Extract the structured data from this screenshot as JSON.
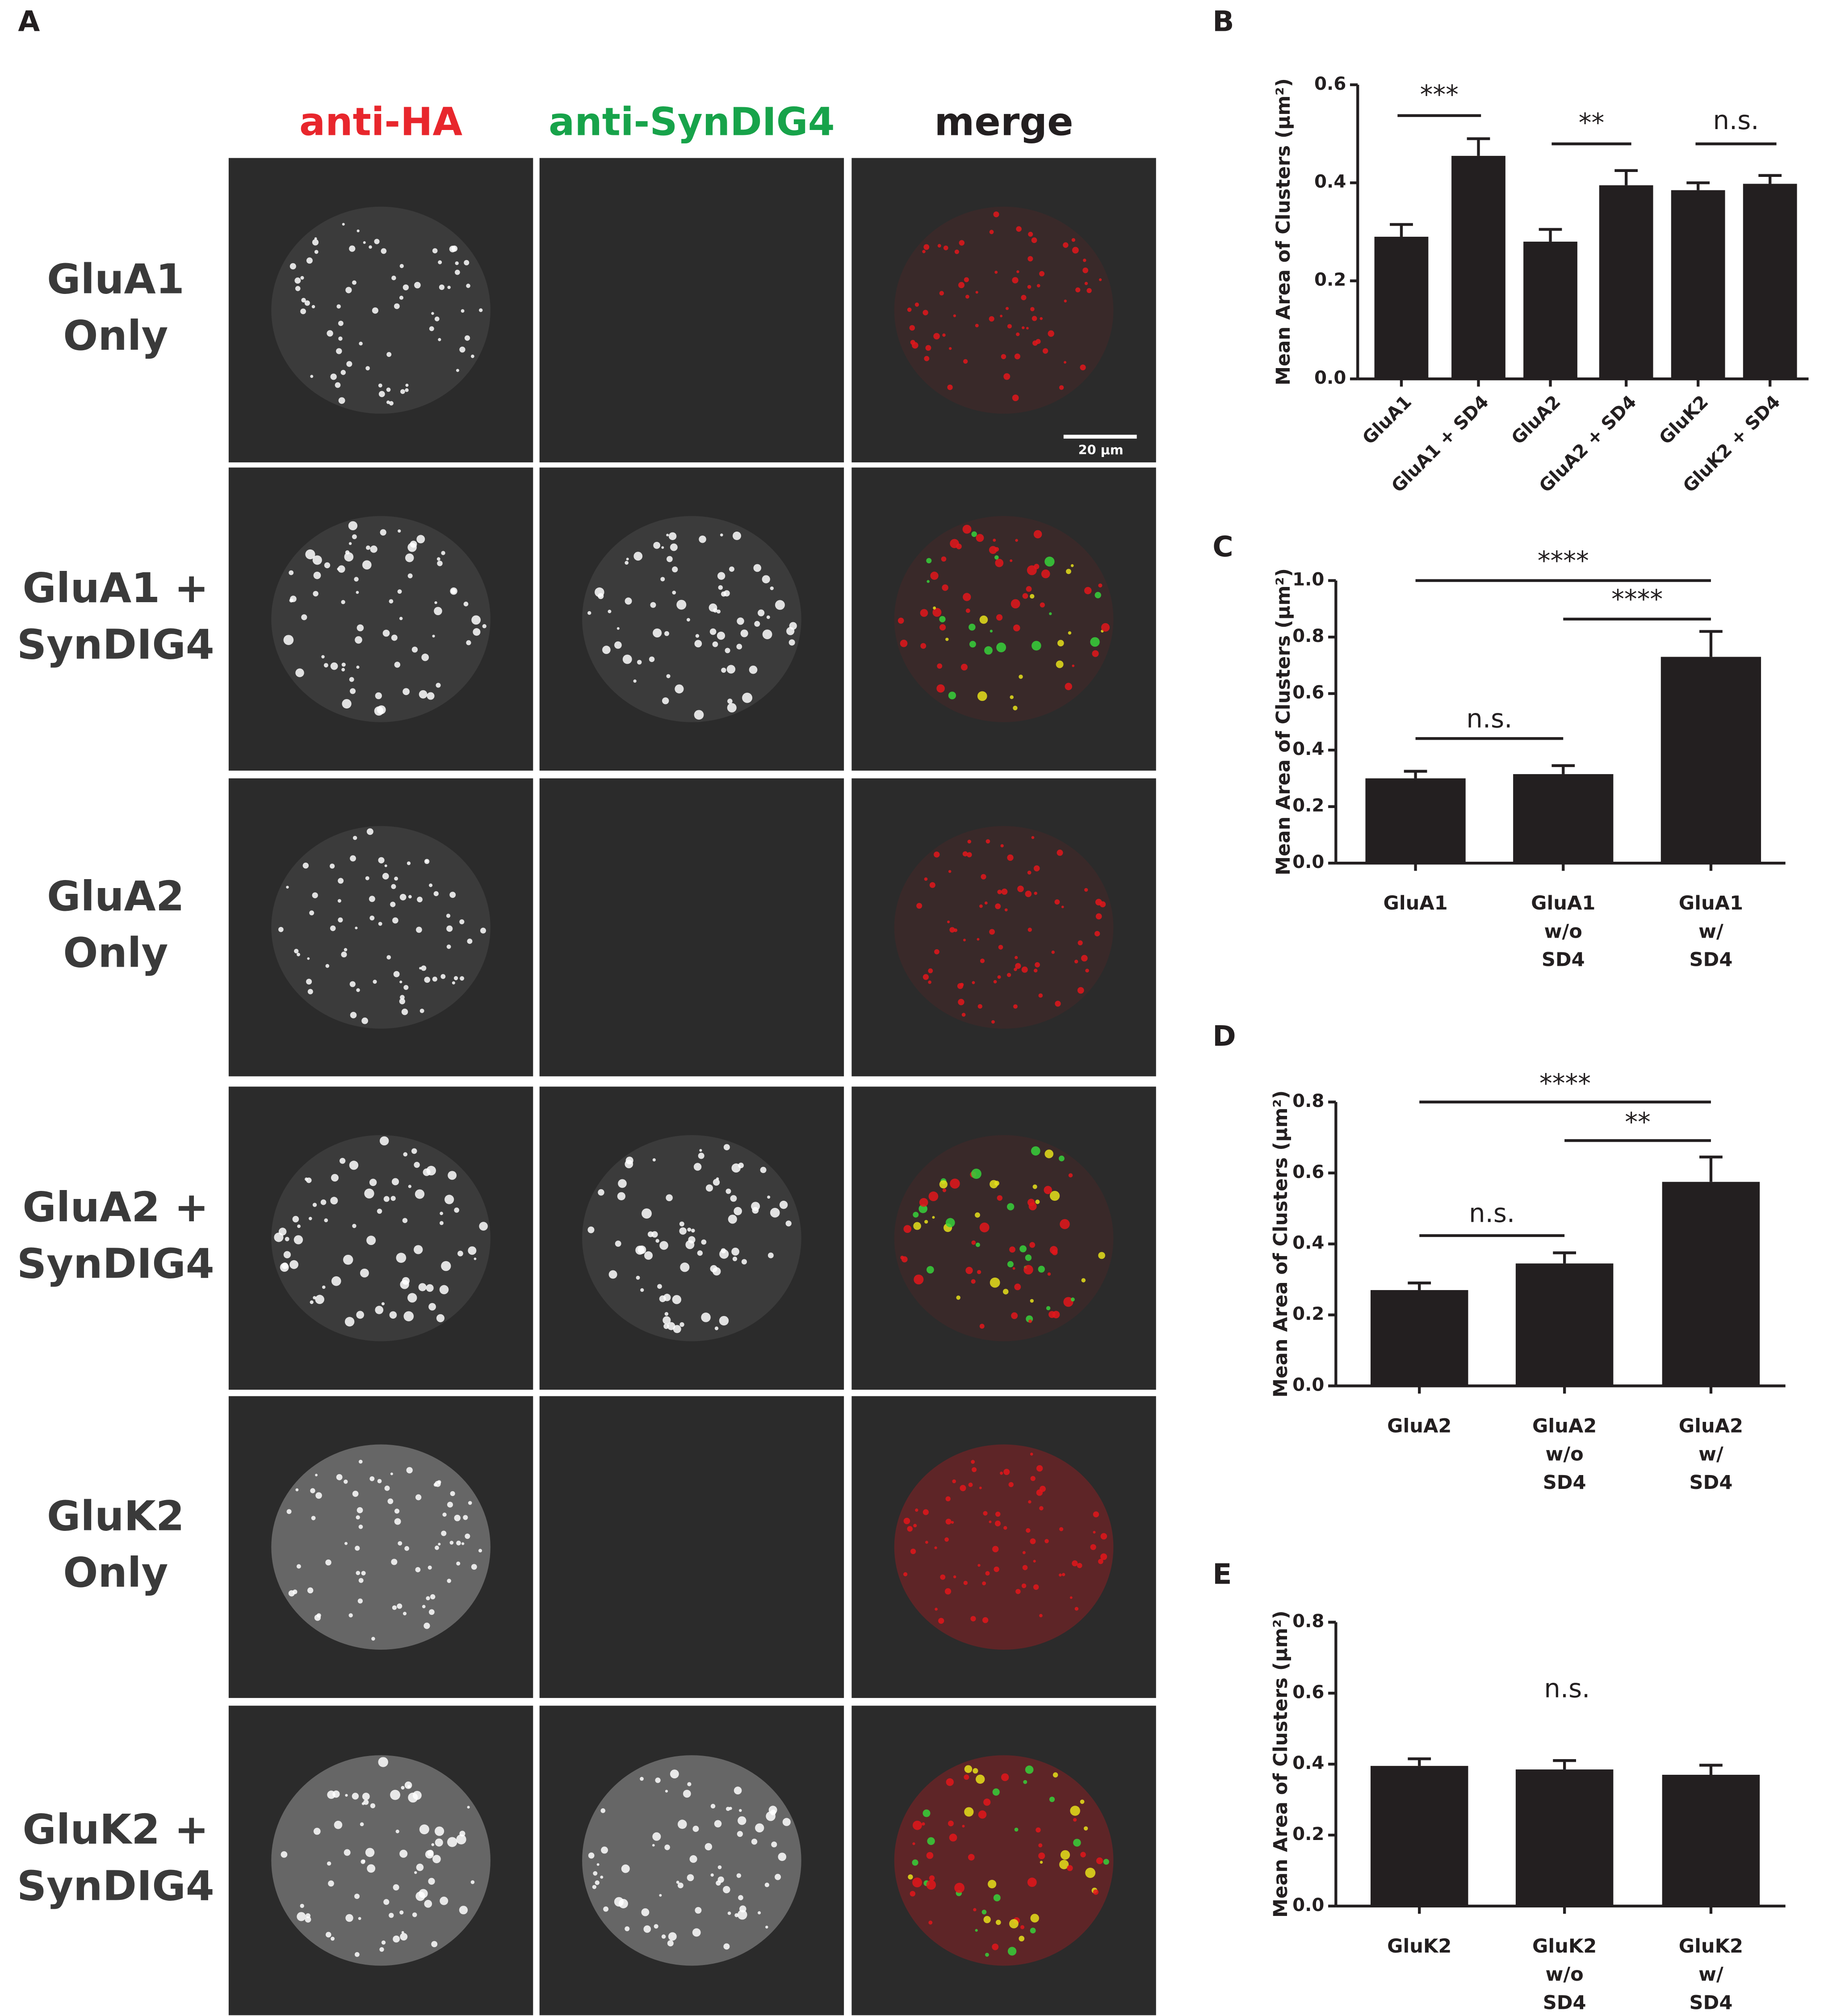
{
  "panel_a": {
    "letter": "A",
    "columns": [
      "anti-HA",
      "anti-SynDIG4",
      "merge"
    ],
    "rows": [
      [
        "GluA1",
        "Only"
      ],
      [
        "GluA1 +",
        "SynDIG4"
      ],
      [
        "GluA2",
        "Only"
      ],
      [
        "GluA2 +",
        "SynDIG4"
      ],
      [
        "GluK2",
        "Only"
      ],
      [
        "GluK2 +",
        "SynDIG4"
      ]
    ],
    "scale_bar": "20 μm"
  },
  "chart_data": [
    {
      "type": "bar",
      "letter": "B",
      "ylabel": "Mean Area of Clusters (μm²)",
      "categories": [
        "GluA1",
        "GluA1 + SD4",
        "GluA2",
        "GluA2 + SD4",
        "GluK2",
        "GluK2 + SD4"
      ],
      "values": [
        0.29,
        0.455,
        0.28,
        0.395,
        0.385,
        0.398
      ],
      "errors": [
        0.025,
        0.035,
        0.025,
        0.03,
        0.015,
        0.017
      ],
      "color": "#231f20",
      "ylim": [
        0,
        0.6
      ],
      "yticks": [
        {
          "value": 0,
          "label": "0.0"
        },
        0.2,
        0.4,
        0.6
      ],
      "annotations": [
        "***",
        "**",
        "n.s."
      ]
    },
    {
      "type": "bar",
      "letter": "C",
      "ylabel": "Mean Area of Clusters (μm²)",
      "categories": [
        "GluA1",
        "GluA1 w/o SD4",
        "GluA1 w/ SD4"
      ],
      "values": [
        0.3,
        0.315,
        0.73
      ],
      "errors": [
        0.025,
        0.03,
        0.09
      ],
      "color": "#231f20",
      "ylim": [
        0,
        1
      ],
      "yticks": [
        {
          "value": 0,
          "label": "0.0"
        },
        0.2,
        0.4,
        0.6,
        0.8,
        {
          "value": 1,
          "label": "1.0"
        }
      ],
      "annotations": [
        "****",
        "****",
        "n.s."
      ]
    },
    {
      "type": "bar",
      "letter": "D",
      "ylabel": "Mean Area of Clusters (μm²)",
      "categories": [
        "GluA2",
        "GluA2 w/o SD4",
        "GluA2 w/ SD4"
      ],
      "values": [
        0.27,
        0.345,
        0.575
      ],
      "errors": [
        0.02,
        0.03,
        0.07
      ],
      "color": "#231f20",
      "ylim": [
        0,
        0.8
      ],
      "yticks": [
        {
          "value": 0,
          "label": "0.0"
        },
        0.2,
        0.4,
        0.6,
        0.8
      ],
      "annotations": [
        "****",
        "**",
        "n.s."
      ]
    },
    {
      "type": "bar",
      "letter": "E",
      "ylabel": "Mean Area of Clusters (μm²)",
      "categories": [
        "GluK2",
        "GluK2 w/o SD4",
        "GluK2 w/ SD4"
      ],
      "values": [
        0.395,
        0.385,
        0.37
      ],
      "errors": [
        0.02,
        0.025,
        0.027
      ],
      "color": "#231f20",
      "ylim": [
        0,
        0.8
      ],
      "yticks": [
        {
          "value": 0,
          "label": "0.0"
        },
        0.2,
        0.4,
        0.6,
        0.8
      ],
      "annotations": [
        "n.s."
      ]
    }
  ]
}
